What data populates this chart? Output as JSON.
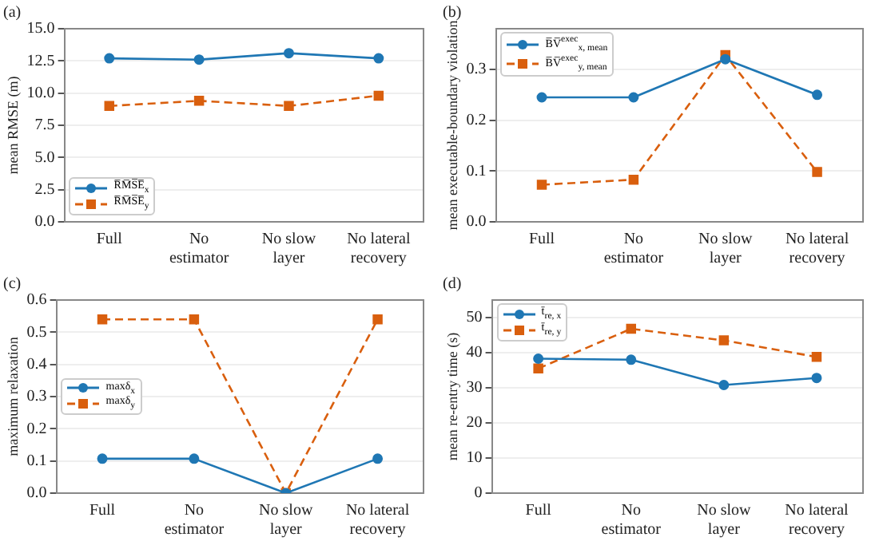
{
  "chart_data": [
    {
      "type": "line",
      "title": "(a)",
      "ylabel": "mean RMSE (m)",
      "categories": [
        "Full",
        "No estimator",
        "No slow layer",
        "No lateral recovery"
      ],
      "ylim": [
        0,
        15
      ],
      "yticks": [
        {
          "value": 0,
          "label": "0.0"
        },
        {
          "value": 2.5,
          "label": "2.5"
        },
        {
          "value": 5,
          "label": "5.0"
        },
        {
          "value": 7.5,
          "label": "7.5"
        },
        {
          "value": 10,
          "label": "10.0"
        },
        {
          "value": 12.5,
          "label": "12.5"
        },
        {
          "value": 15,
          "label": "15.0"
        }
      ],
      "grid": "y",
      "legend": "bottom left",
      "series": [
        {
          "name": "R̅M̅S̅E̅$_{x}$",
          "color": "#1f77b4",
          "marker": "circle",
          "line_style": "solid",
          "values": [
            12.7,
            12.6,
            13.1,
            12.7
          ]
        },
        {
          "name": "R̅M̅S̅E̅$_{y}$",
          "color": "#d95f0e",
          "marker": "square",
          "line_style": "dashed",
          "values": [
            9.0,
            9.4,
            9.0,
            9.8
          ]
        }
      ]
    },
    {
      "type": "line",
      "title": "(b)",
      "ylabel": "mean executable-boundary violation",
      "categories": [
        "Full",
        "No estimator",
        "No slow layer",
        "No lateral recovery"
      ],
      "ylim": [
        0,
        0.38
      ],
      "yticks": [
        {
          "value": 0,
          "label": "0.0"
        },
        0.1,
        0.2,
        0.3
      ],
      "grid": "y",
      "legend": "top left",
      "series": [
        {
          "name": "B̅V̅$^{exec}$$_{x, mean}$",
          "color": "#1f77b4",
          "marker": "circle",
          "line_style": "solid",
          "values": [
            0.245,
            0.245,
            0.32,
            0.25
          ]
        },
        {
          "name": "B̅V̅$^{exec}$$_{y, mean}$",
          "color": "#d95f0e",
          "marker": "square",
          "line_style": "dashed",
          "values": [
            0.073,
            0.083,
            0.328,
            0.098
          ]
        }
      ]
    },
    {
      "type": "line",
      "title": "(c)",
      "ylabel": "maximum relaxation",
      "categories": [
        "Full",
        "No estimator",
        "No slow layer",
        "No lateral recovery"
      ],
      "ylim": [
        0,
        0.6
      ],
      "yticks": [
        {
          "value": 0,
          "label": "0.0"
        },
        0.1,
        0.2,
        0.3,
        0.4,
        0.5,
        0.6
      ],
      "grid": "y",
      "legend": "left",
      "series": [
        {
          "name": "maxδ$_{x}$",
          "color": "#1f77b4",
          "marker": "circle",
          "line_style": "solid",
          "values": [
            0.107,
            0.107,
            0,
            0.107
          ]
        },
        {
          "name": "maxδ$_{y}$",
          "color": "#d95f0e",
          "marker": "square",
          "line_style": "dashed",
          "values": [
            0.54,
            0.54,
            0,
            0.54
          ]
        }
      ]
    },
    {
      "type": "line",
      "title": "(d)",
      "ylabel": "mean re-entry time (s)",
      "categories": [
        "Full",
        "No estimator",
        "No slow layer",
        "No lateral recovery"
      ],
      "ylim": [
        0,
        55
      ],
      "yticks": [
        0,
        10,
        20,
        30,
        40,
        50
      ],
      "grid": "y",
      "legend": "top left",
      "series": [
        {
          "name": "t̄$_{re, x}$",
          "color": "#1f77b4",
          "marker": "circle",
          "line_style": "solid",
          "values": [
            38.3,
            38,
            30.8,
            32.8
          ]
        },
        {
          "name": "t̄$_{re, y}$",
          "color": "#d95f0e",
          "marker": "square",
          "line_style": "dashed",
          "values": [
            35.5,
            46.8,
            43.5,
            38.8
          ]
        }
      ]
    }
  ]
}
